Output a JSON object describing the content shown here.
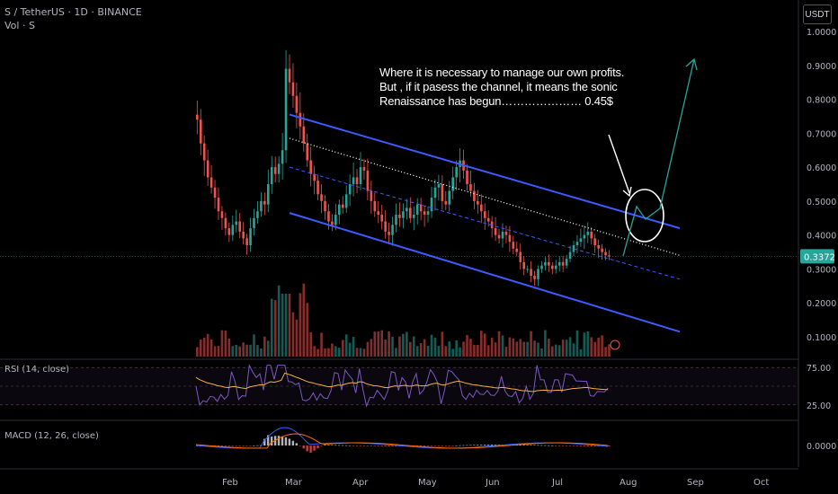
{
  "header": {
    "symbol_line": "S / TetherUS · 1D · BINANCE",
    "volume_label": "Vol · S",
    "currency_button": "USDT"
  },
  "annotation": {
    "line1": "Where it is necessary to manage our own profits.",
    "line2": "But , if it pasess the channel, it means the sonic",
    "line3": "Renaissance has begun………………… 0.45$"
  },
  "colors": {
    "background": "#000000",
    "up": "#26a69a",
    "down": "#ef5350",
    "channel": "#3d5afe",
    "rsi_line": "#7e57c2",
    "rsi_ma": "#f5b041",
    "macd_line": "#2962ff",
    "signal_line": "#ff6d00",
    "price_badge": "#26a69a",
    "target_arrow": "#26a69a"
  },
  "chart_data": [
    {
      "type": "line",
      "pane": "price",
      "y_scale": "linear",
      "y_ticks": [
        "1.0000",
        "0.9000",
        "0.8000",
        "0.7000",
        "0.6000",
        "0.5000",
        "0.4000",
        "0.3000",
        "0.2000",
        "0.1000"
      ],
      "y_tick_values": [
        1.0,
        0.9,
        0.8,
        0.7,
        0.6,
        0.5,
        0.4,
        0.3,
        0.2,
        0.1
      ],
      "ylim": [
        0.04,
        1.0
      ],
      "x_ticks": [
        "Feb",
        "Mar",
        "Apr",
        "May",
        "Jun",
        "Jul",
        "Aug",
        "Sep",
        "Oct"
      ],
      "last_price_label": "0.3372",
      "last_price": 0.3372,
      "series_close": [
        0.74,
        0.67,
        0.62,
        0.57,
        0.54,
        0.51,
        0.47,
        0.45,
        0.42,
        0.4,
        0.43,
        0.44,
        0.41,
        0.39,
        0.37,
        0.42,
        0.45,
        0.47,
        0.5,
        0.49,
        0.55,
        0.6,
        0.58,
        0.61,
        0.65,
        0.89,
        0.85,
        0.81,
        0.76,
        0.72,
        0.67,
        0.62,
        0.58,
        0.56,
        0.52,
        0.5,
        0.47,
        0.44,
        0.43,
        0.46,
        0.49,
        0.48,
        0.52,
        0.55,
        0.57,
        0.55,
        0.6,
        0.59,
        0.53,
        0.5,
        0.47,
        0.46,
        0.44,
        0.41,
        0.4,
        0.43,
        0.46,
        0.45,
        0.47,
        0.48,
        0.45,
        0.46,
        0.49,
        0.47,
        0.46,
        0.47,
        0.51,
        0.54,
        0.55,
        0.5,
        0.49,
        0.53,
        0.57,
        0.6,
        0.62,
        0.59,
        0.55,
        0.53,
        0.5,
        0.49,
        0.47,
        0.45,
        0.44,
        0.42,
        0.4,
        0.39,
        0.41,
        0.4,
        0.38,
        0.36,
        0.35,
        0.32,
        0.3,
        0.3,
        0.28,
        0.27,
        0.3,
        0.31,
        0.32,
        0.31,
        0.3,
        0.31,
        0.32,
        0.31,
        0.33,
        0.35,
        0.37,
        0.38,
        0.39,
        0.4,
        0.41,
        0.39,
        0.37,
        0.36,
        0.35,
        0.34,
        0.337
      ],
      "channel_upper": [
        [
          0.755,
          0.42
        ]
      ],
      "channel_lower": [
        [
          0.465,
          0.115
        ]
      ],
      "midline": [
        [
          0.6,
          0.27
        ]
      ],
      "resistance_dotted": [
        [
          0.685,
          0.34
        ]
      ],
      "target_arrow_end": 0.91
    },
    {
      "type": "line",
      "pane": "rsi",
      "title": "RSI (14, close)",
      "y_ticks": [
        "75.00",
        "25.00"
      ],
      "y_tick_values": [
        75,
        25
      ],
      "ylim": [
        20,
        80
      ]
    },
    {
      "type": "bar",
      "pane": "macd",
      "title": "MACD (12, 26, close)",
      "y_ticks": [
        "0.0000"
      ],
      "y_tick_values": [
        0
      ]
    }
  ]
}
